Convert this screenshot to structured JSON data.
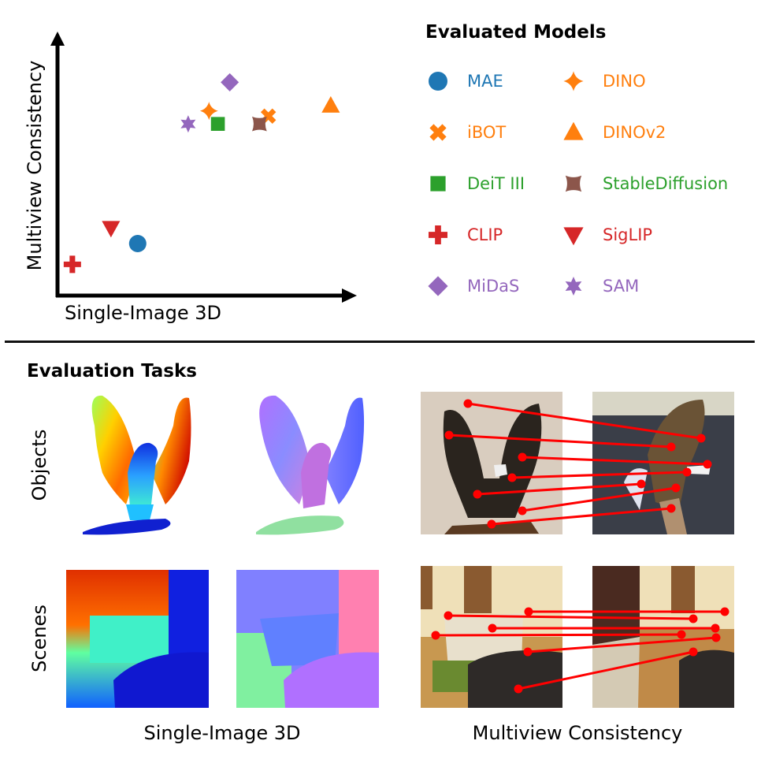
{
  "figure": {
    "top_legend_title": "Evaluated Models",
    "section_title": "Evaluation Tasks",
    "row_labels": [
      "Objects",
      "Scenes"
    ],
    "column_captions": [
      "Single-Image 3D",
      "Multiview Consistency"
    ],
    "colors": {
      "blue": "#1f77b4",
      "orange": "#ff7f0e",
      "green": "#2ca02c",
      "red": "#d62728",
      "purple": "#9467bd",
      "brown": "#8c564b",
      "correspondence": "#ff0000"
    },
    "panels": [
      {
        "row": "Objects",
        "task": "Single-Image 3D",
        "kind": "depth map (eagle)"
      },
      {
        "row": "Objects",
        "task": "Single-Image 3D",
        "kind": "surface normals (eagle)"
      },
      {
        "row": "Objects",
        "task": "Multiview Consistency",
        "kind": "correspondences (eagle, two views)",
        "matches": 7
      },
      {
        "row": "Scenes",
        "task": "Single-Image 3D",
        "kind": "depth map (room)"
      },
      {
        "row": "Scenes",
        "task": "Single-Image 3D",
        "kind": "surface normals (room)"
      },
      {
        "row": "Scenes",
        "task": "Multiview Consistency",
        "kind": "correspondences (room, two views)",
        "matches": 6
      }
    ]
  },
  "chart_data": {
    "type": "scatter",
    "title": "",
    "xlabel": "Single-Image 3D",
    "ylabel": "Multiview Consistency",
    "xlim": [
      0,
      1
    ],
    "ylim": [
      0,
      1
    ],
    "grid": false,
    "ticks": "none",
    "legend": {
      "title": "Evaluated Models",
      "placement": "right",
      "columns": 2
    },
    "series": [
      {
        "name": "MAE",
        "marker": "circle",
        "color": "#1f77b4",
        "label_color": "#1f77b4",
        "x": 0.27,
        "y": 0.2
      },
      {
        "name": "DINO",
        "marker": "four-point-star",
        "color": "#ff7f0e",
        "label_color": "#ff7f0e",
        "x": 0.51,
        "y": 0.71
      },
      {
        "name": "iBOT",
        "marker": "x",
        "color": "#ff7f0e",
        "label_color": "#ff7f0e",
        "x": 0.71,
        "y": 0.69
      },
      {
        "name": "DINOv2",
        "marker": "triangle-up",
        "color": "#ff7f0e",
        "label_color": "#ff7f0e",
        "x": 0.92,
        "y": 0.73
      },
      {
        "name": "DeiT III",
        "marker": "square",
        "color": "#2ca02c",
        "label_color": "#2ca02c",
        "x": 0.54,
        "y": 0.66
      },
      {
        "name": "StableDiffusion",
        "marker": "concave-square",
        "color": "#8c564b",
        "label_color": "#2ca02c",
        "x": 0.68,
        "y": 0.66
      },
      {
        "name": "CLIP",
        "marker": "plus",
        "color": "#d62728",
        "label_color": "#d62728",
        "x": 0.05,
        "y": 0.12
      },
      {
        "name": "SigLIP",
        "marker": "triangle-down",
        "color": "#d62728",
        "label_color": "#d62728",
        "x": 0.18,
        "y": 0.26
      },
      {
        "name": "MiDaS",
        "marker": "diamond",
        "color": "#9467bd",
        "label_color": "#9467bd",
        "x": 0.58,
        "y": 0.82
      },
      {
        "name": "SAM",
        "marker": "six-point-star",
        "color": "#9467bd",
        "label_color": "#9467bd",
        "x": 0.44,
        "y": 0.66
      }
    ]
  }
}
